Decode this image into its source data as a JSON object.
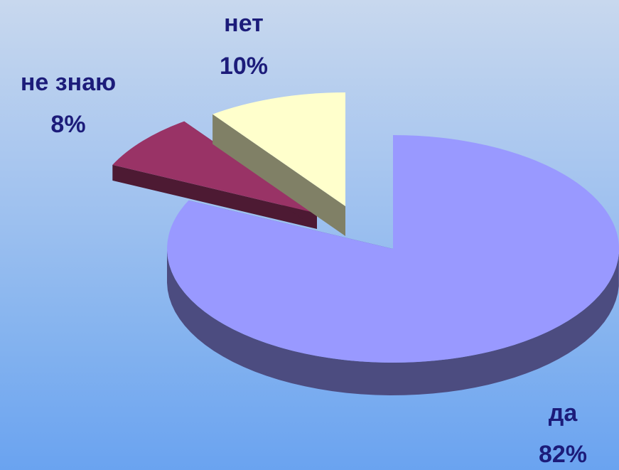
{
  "chart_data": {
    "type": "pie",
    "title": "",
    "slices": [
      {
        "name": "да",
        "value": 82,
        "label": "82%",
        "color": "#9999ff",
        "side_color": "#4c4c80"
      },
      {
        "name": "не знаю",
        "value": 8,
        "label": "8%",
        "color": "#993366",
        "side_color": "#4d1a33"
      },
      {
        "name": "нет",
        "value": 10,
        "label": "10%",
        "color": "#ffffcc",
        "side_color": "#808066"
      }
    ],
    "three_d": true,
    "exploded": true,
    "legend": "none",
    "label_color": "#1c1c7a"
  }
}
